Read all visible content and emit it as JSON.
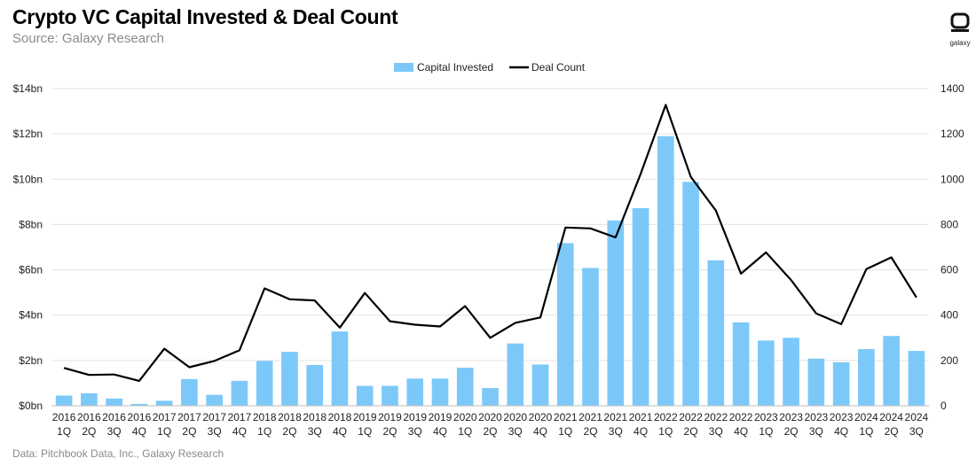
{
  "title": "Crypto VC Capital Invested & Deal Count",
  "subtitle": "Source: Galaxy Research",
  "footer": "Data: Pitchbook Data, Inc., Galaxy Research",
  "logo": {
    "icon": "galaxy-logo-icon",
    "text": "galaxy"
  },
  "colors": {
    "bars": "#7cc9f9",
    "line": "#000000",
    "grid": "#e3e3e3"
  },
  "chart_data": {
    "type": "bar+line",
    "title": "Crypto VC Capital Invested & Deal Count",
    "categories": [
      [
        "2016",
        "1Q"
      ],
      [
        "2016",
        "2Q"
      ],
      [
        "2016",
        "3Q"
      ],
      [
        "2016",
        "4Q"
      ],
      [
        "2017",
        "1Q"
      ],
      [
        "2017",
        "2Q"
      ],
      [
        "2017",
        "3Q"
      ],
      [
        "2017",
        "4Q"
      ],
      [
        "2018",
        "1Q"
      ],
      [
        "2018",
        "2Q"
      ],
      [
        "2018",
        "3Q"
      ],
      [
        "2018",
        "4Q"
      ],
      [
        "2019",
        "1Q"
      ],
      [
        "2019",
        "2Q"
      ],
      [
        "2019",
        "3Q"
      ],
      [
        "2019",
        "4Q"
      ],
      [
        "2020",
        "1Q"
      ],
      [
        "2020",
        "2Q"
      ],
      [
        "2020",
        "3Q"
      ],
      [
        "2020",
        "4Q"
      ],
      [
        "2021",
        "1Q"
      ],
      [
        "2021",
        "2Q"
      ],
      [
        "2021",
        "3Q"
      ],
      [
        "2021",
        "4Q"
      ],
      [
        "2022",
        "1Q"
      ],
      [
        "2022",
        "2Q"
      ],
      [
        "2022",
        "3Q"
      ],
      [
        "2022",
        "4Q"
      ],
      [
        "2023",
        "1Q"
      ],
      [
        "2023",
        "2Q"
      ],
      [
        "2023",
        "3Q"
      ],
      [
        "2023",
        "4Q"
      ],
      [
        "2024",
        "1Q"
      ],
      [
        "2024",
        "2Q"
      ],
      [
        "2024",
        "3Q"
      ]
    ],
    "series": [
      {
        "name": "Capital Invested",
        "type": "bar",
        "axis": "left",
        "unit": "$bn",
        "values": [
          0.45,
          0.55,
          0.32,
          0.08,
          0.22,
          1.18,
          0.48,
          1.1,
          1.98,
          2.38,
          1.8,
          3.28,
          0.88,
          0.88,
          1.2,
          1.2,
          1.68,
          0.78,
          2.75,
          1.82,
          7.18,
          6.08,
          8.18,
          8.72,
          11.9,
          9.88,
          6.42,
          3.68,
          2.88,
          3.0,
          2.08,
          1.92,
          2.5,
          3.08,
          2.42
        ]
      },
      {
        "name": "Deal Count",
        "type": "line",
        "axis": "right",
        "values": [
          167,
          136,
          138,
          110,
          252,
          170,
          198,
          245,
          518,
          470,
          465,
          345,
          498,
          373,
          358,
          350,
          440,
          300,
          366,
          390,
          787,
          783,
          743,
          1023,
          1328,
          1010,
          862,
          583,
          677,
          555,
          408,
          360,
          603,
          655,
          478
        ]
      }
    ],
    "left_axis": {
      "ylim": [
        0,
        14
      ],
      "ticks": [
        "$0bn",
        "$2bn",
        "$4bn",
        "$6bn",
        "$8bn",
        "$10bn",
        "$12bn",
        "$14bn"
      ]
    },
    "right_axis": {
      "ylim": [
        0,
        1400
      ],
      "ticks": [
        "0",
        "200",
        "400",
        "600",
        "800",
        "1000",
        "1200",
        "1400"
      ]
    },
    "legend": [
      "Capital Invested",
      "Deal Count"
    ],
    "grid": true
  }
}
